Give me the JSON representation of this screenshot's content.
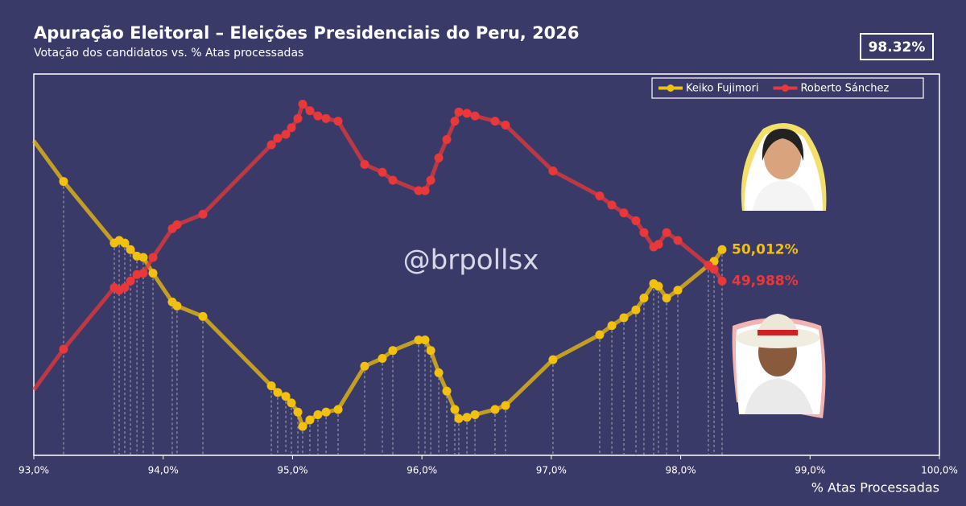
{
  "chart_data": {
    "type": "line",
    "title": "Apuração Eleitoral – Eleições Presidenciais do Peru, 2026",
    "subtitle": "Votação dos candidatos vs. % Atas processadas",
    "badge": "98.32%",
    "watermark": "@brpollsx",
    "x_label": "% Atas Processadas",
    "xlim": [
      93,
      100
    ],
    "xticks": [
      {
        "value": 93,
        "label": "93,0%"
      },
      {
        "value": 94,
        "label": "94,0%"
      },
      {
        "value": 95,
        "label": "95,0%"
      },
      {
        "value": 96,
        "label": "96,0%"
      },
      {
        "value": 97,
        "label": "97,0%"
      },
      {
        "value": 98,
        "label": "98,0%"
      },
      {
        "value": 99,
        "label": "99,0%"
      },
      {
        "value": 100,
        "label": "100,0%"
      }
    ],
    "ylim": [
      49.855,
      50.146
    ],
    "legend": "top-right",
    "x": [
      93.0,
      93.23,
      93.622,
      93.66,
      93.703,
      93.747,
      93.797,
      93.846,
      93.921,
      94.07,
      94.107,
      94.307,
      94.836,
      94.885,
      94.948,
      94.991,
      95.041,
      95.078,
      95.134,
      95.196,
      95.259,
      95.352,
      95.557,
      95.694,
      95.775,
      95.974,
      96.024,
      96.068,
      96.13,
      96.192,
      96.254,
      96.285,
      96.348,
      96.41,
      96.565,
      96.646,
      97.013,
      97.374,
      97.468,
      97.561,
      97.654,
      97.716,
      97.791,
      97.828,
      97.891,
      97.978,
      98.214,
      98.258,
      98.32
    ],
    "series": [
      {
        "name": "Keiko Fujimori",
        "color": "#f2c00f",
        "values": [
          50.095,
          50.064,
          50.017,
          50.019,
          50.017,
          50.012,
          50.007,
          50.006,
          49.994,
          49.972,
          49.969,
          49.961,
          49.908,
          49.903,
          49.9,
          49.895,
          49.888,
          49.877,
          49.882,
          49.886,
          49.888,
          49.89,
          49.923,
          49.929,
          49.935,
          49.943,
          49.943,
          49.935,
          49.918,
          49.904,
          49.89,
          49.883,
          49.884,
          49.886,
          49.89,
          49.893,
          49.928,
          49.947,
          49.954,
          49.96,
          49.966,
          49.975,
          49.986,
          49.984,
          49.975,
          49.981,
          50.0,
          50.003,
          50.012
        ],
        "value_labels": [
          null,
          null,
          null,
          null,
          null,
          null,
          null,
          null,
          null,
          null,
          null,
          null,
          null,
          null,
          null,
          null,
          null,
          null,
          null,
          null,
          null,
          null,
          null,
          null,
          null,
          null,
          null,
          null,
          null,
          null,
          null,
          null,
          null,
          null,
          null,
          null,
          null,
          null,
          null,
          null,
          null,
          null,
          null,
          null,
          null,
          null,
          null,
          null,
          "50,012%"
        ]
      },
      {
        "name": "Roberto Sánchez",
        "color": "#e8383a",
        "values": [
          49.905,
          49.936,
          49.983,
          49.981,
          49.983,
          49.988,
          49.993,
          49.994,
          50.006,
          50.028,
          50.031,
          50.039,
          50.092,
          50.097,
          50.1,
          50.105,
          50.112,
          50.123,
          50.118,
          50.114,
          50.112,
          50.11,
          50.077,
          50.071,
          50.065,
          50.057,
          50.057,
          50.065,
          50.082,
          50.096,
          50.11,
          50.117,
          50.116,
          50.114,
          50.11,
          50.107,
          50.072,
          50.053,
          50.046,
          50.04,
          50.034,
          50.025,
          50.014,
          50.016,
          50.025,
          50.019,
          50.0,
          49.997,
          49.988
        ],
        "value_labels": [
          null,
          null,
          null,
          null,
          null,
          null,
          null,
          null,
          null,
          null,
          null,
          null,
          null,
          null,
          null,
          null,
          null,
          null,
          null,
          null,
          null,
          null,
          null,
          null,
          null,
          null,
          null,
          null,
          null,
          null,
          null,
          null,
          null,
          null,
          null,
          null,
          null,
          null,
          null,
          null,
          null,
          null,
          null,
          null,
          null,
          null,
          null,
          null,
          "49,988%"
        ]
      }
    ]
  }
}
